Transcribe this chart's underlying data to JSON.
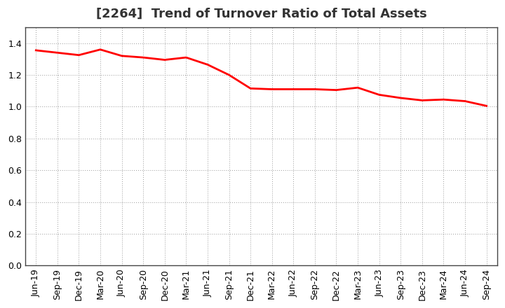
{
  "title": "[2264]  Trend of Turnover Ratio of Total Assets",
  "x_labels": [
    "Jun-19",
    "Sep-19",
    "Dec-19",
    "Mar-20",
    "Jun-20",
    "Sep-20",
    "Dec-20",
    "Mar-21",
    "Jun-21",
    "Sep-21",
    "Dec-21",
    "Mar-22",
    "Jun-22",
    "Sep-22",
    "Dec-22",
    "Mar-23",
    "Jun-23",
    "Sep-23",
    "Dec-23",
    "Mar-24",
    "Jun-24",
    "Sep-24"
  ],
  "y_values": [
    1.355,
    1.34,
    1.325,
    1.36,
    1.32,
    1.31,
    1.295,
    1.31,
    1.265,
    1.2,
    1.115,
    1.11,
    1.11,
    1.11,
    1.105,
    1.12,
    1.075,
    1.055,
    1.04,
    1.045,
    1.035,
    1.005
  ],
  "line_color": "#FF0000",
  "line_width": 2.0,
  "ylim": [
    0.0,
    1.5
  ],
  "yticks": [
    0.0,
    0.2,
    0.4,
    0.6,
    0.8,
    1.0,
    1.2,
    1.4
  ],
  "background_color": "#FFFFFF",
  "grid_color": "#999999",
  "title_fontsize": 13,
  "tick_fontsize": 9,
  "title_color": "#333333"
}
